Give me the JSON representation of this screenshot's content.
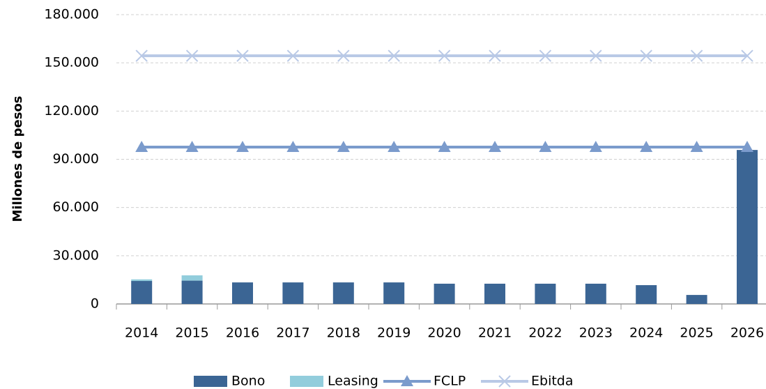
{
  "chart_data": {
    "type": "bar",
    "y_label": "Millones de pesos",
    "categories": [
      "2014",
      "2015",
      "2016",
      "2017",
      "2018",
      "2019",
      "2020",
      "2021",
      "2022",
      "2023",
      "2024",
      "2025",
      "2026"
    ],
    "series": [
      {
        "name": "Bono",
        "type": "bar",
        "color": "#3b6594",
        "values": [
          14300,
          14500,
          13400,
          13400,
          13400,
          13400,
          12600,
          12600,
          12600,
          12600,
          11700,
          5600,
          95800
        ]
      },
      {
        "name": "Leasing",
        "type": "bar",
        "color": "#92cddc",
        "values": [
          1000,
          3300,
          0,
          0,
          0,
          0,
          0,
          0,
          0,
          0,
          0,
          0,
          0
        ]
      },
      {
        "name": "FCLP",
        "type": "line",
        "marker": "triangle",
        "color": "#7b9bcc",
        "values": [
          97600,
          97600,
          97600,
          97600,
          97600,
          97600,
          97600,
          97600,
          97600,
          97600,
          97600,
          97600,
          97600
        ]
      },
      {
        "name": "Ebitda",
        "type": "line",
        "marker": "x",
        "color": "#b9c9e6",
        "values": [
          154400,
          154400,
          154400,
          154400,
          154400,
          154400,
          154400,
          154400,
          154400,
          154400,
          154400,
          154400,
          154400
        ]
      }
    ],
    "stacked": true,
    "ylim": [
      0,
      180000
    ],
    "yticks": [
      0,
      {
        "value": 30000,
        "label": "30.000"
      },
      {
        "value": 60000,
        "label": "60.000"
      },
      {
        "value": 90000,
        "label": "90.000"
      },
      {
        "value": 120000,
        "label": "120.000"
      },
      {
        "value": 150000,
        "label": "150.000"
      },
      {
        "value": 180000,
        "label": "180.000"
      }
    ],
    "grid": true,
    "legend": "bottom"
  }
}
